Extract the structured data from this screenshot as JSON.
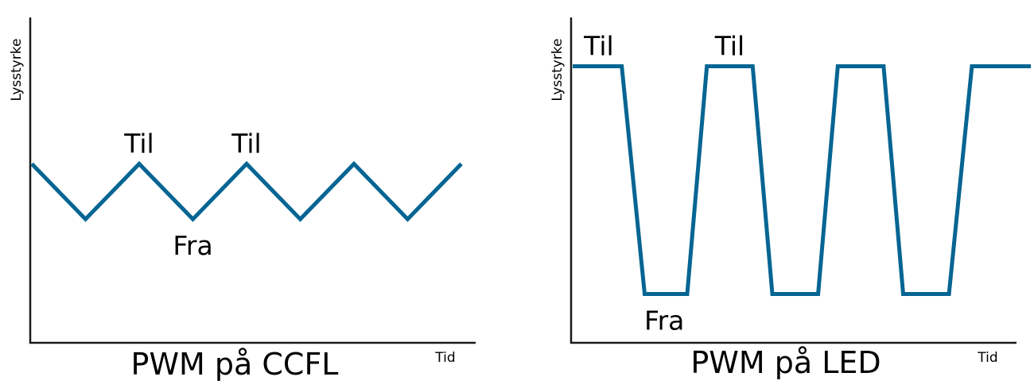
{
  "chart_data": [
    {
      "type": "line",
      "title": "PWM på CCFL",
      "xlabel": "Tid",
      "ylabel": "Lysstyrke",
      "ylim": [
        0,
        1
      ],
      "series": [
        {
          "x": [
            0,
            1,
            2,
            3,
            4,
            5,
            6,
            7,
            8
          ],
          "values": [
            0.55,
            0.38,
            0.55,
            0.38,
            0.55,
            0.38,
            0.55,
            0.38,
            0.55
          ]
        }
      ],
      "annotations": [
        {
          "text": "Til",
          "x": 2,
          "y": 0.55,
          "pos": "above"
        },
        {
          "text": "Til",
          "x": 4,
          "y": 0.55,
          "pos": "above"
        },
        {
          "text": "Fra",
          "x": 3,
          "y": 0.38,
          "pos": "below"
        }
      ],
      "grid": false,
      "color": "#066593"
    },
    {
      "type": "line",
      "title": "PWM på LED",
      "xlabel": "Tid",
      "ylabel": "Lysstyrke",
      "ylim": [
        0,
        1
      ],
      "series": [
        {
          "x": [
            0,
            0.75,
            1.1,
            1.75,
            2.05,
            2.75,
            3.05,
            3.75,
            4.05,
            4.75,
            5.05,
            5.75,
            6.1,
            7.0
          ],
          "values": [
            0.85,
            0.85,
            0.15,
            0.15,
            0.85,
            0.85,
            0.15,
            0.15,
            0.85,
            0.85,
            0.15,
            0.15,
            0.85,
            0.85
          ]
        }
      ],
      "annotations": [
        {
          "text": "Til",
          "x": 0.4,
          "y": 0.85,
          "pos": "above"
        },
        {
          "text": "Til",
          "x": 2.4,
          "y": 0.85,
          "pos": "above"
        },
        {
          "text": "Fra",
          "x": 1.4,
          "y": 0.15,
          "pos": "below"
        }
      ],
      "grid": false,
      "color": "#066593"
    }
  ]
}
